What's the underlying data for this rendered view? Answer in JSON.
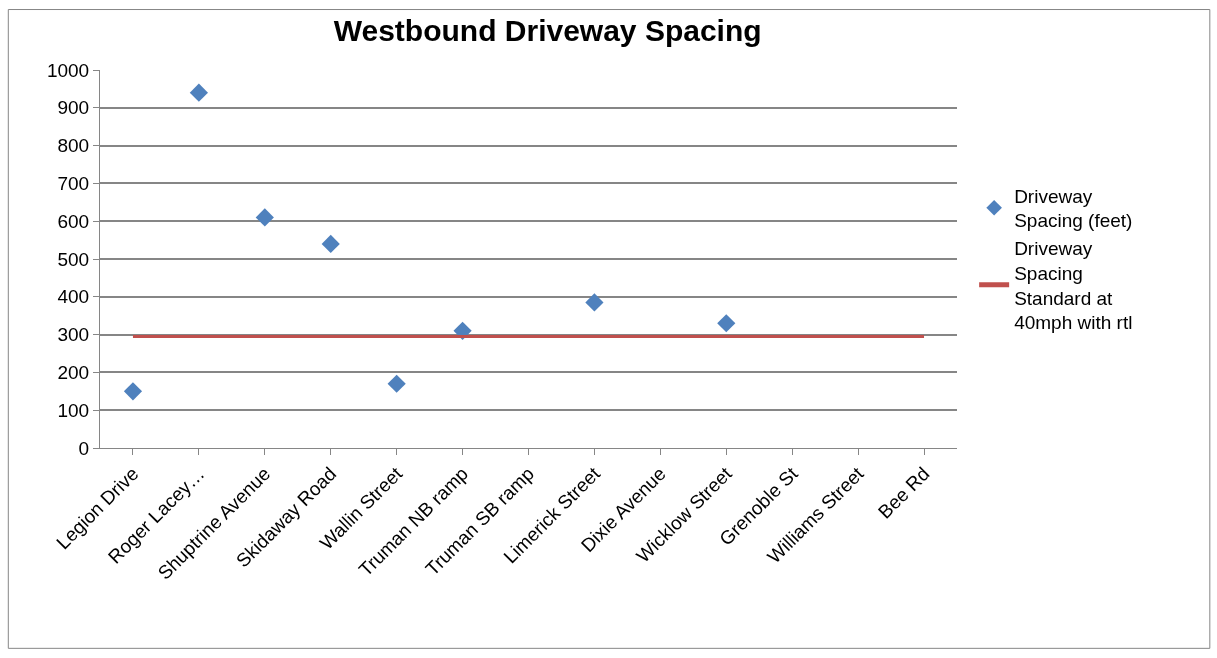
{
  "chart_data": {
    "type": "scatter",
    "title": "Westbound Driveway Spacing",
    "categories": [
      "Legion Drive",
      "Roger Lacey…",
      "Shuptrine Avenue",
      "Skidaway Road",
      "Wallin Street",
      "Truman NB ramp",
      "Truman SB ramp",
      "Limerick Street",
      "Dixie Avenue",
      "Wicklow Street",
      "Grenoble St",
      "Williams Street",
      "Bee Rd"
    ],
    "series": [
      {
        "name": "Driveway Spacing (feet)",
        "marker": "diamond",
        "color": "#4f81bd",
        "values": [
          150,
          940,
          610,
          540,
          170,
          310,
          null,
          385,
          null,
          330,
          null,
          null,
          null
        ]
      },
      {
        "name": "Driveway Spacing Standard at 40mph with rtl",
        "type": "line",
        "marker": "none",
        "color": "#c0504d",
        "values": [
          295,
          295,
          295,
          295,
          295,
          295,
          295,
          295,
          295,
          295,
          295,
          295,
          295
        ]
      }
    ],
    "ylim": [
      0,
      1000
    ],
    "yticks": [
      0,
      100,
      200,
      300,
      400,
      500,
      600,
      700,
      800,
      900,
      1000
    ],
    "grid": "y",
    "legend": "right"
  }
}
